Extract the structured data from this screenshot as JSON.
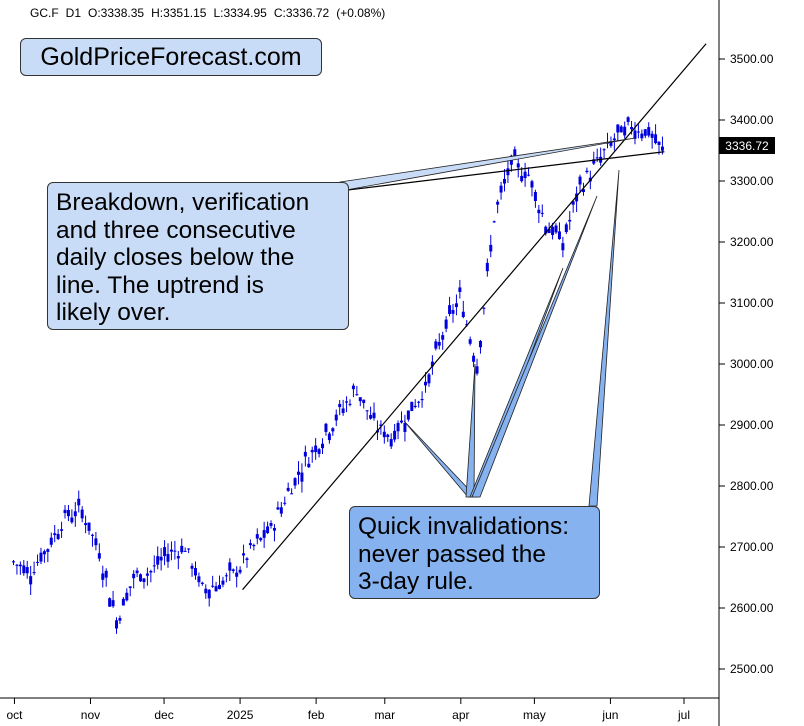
{
  "header": {
    "symbol": "GC.F",
    "timeframe": "D1",
    "open": "O:3338.35",
    "high": "H:3351.15",
    "low": "L:3334.95",
    "close": "C:3336.72",
    "change": "(+0.08%)"
  },
  "brand": "GoldPriceForecast.com",
  "callouts": {
    "breakdown": [
      "Breakdown, verification",
      "and three consecutive",
      "daily closes below the",
      "line. The uptrend is",
      "likely over."
    ],
    "invalidations": [
      "Quick invalidations:",
      "never passed the",
      "3-day rule."
    ]
  },
  "colors": {
    "candle": "#0000dd",
    "line": "#000000",
    "callout_light": "#c9dcf7",
    "callout_dark": "#86b2ef"
  },
  "chart_data": {
    "type": "line",
    "title": "",
    "xlabel": "",
    "ylabel": "",
    "ylim": [
      2475,
      3530
    ],
    "y_ticks": [
      2500,
      2600,
      2700,
      2800,
      2900,
      3000,
      3100,
      3200,
      3300,
      3400,
      3500
    ],
    "y_tick_labels": [
      "2500.00",
      "2600.00",
      "2700.00",
      "2800.00",
      "2900.00",
      "3000.00",
      "3100.00",
      "3200.00",
      "3300.00",
      "3400.00",
      "3500.00"
    ],
    "x_tick_labels": [
      "oct",
      "nov",
      "dec",
      "2025",
      "feb",
      "mar",
      "apr",
      "may",
      "jun",
      "jul"
    ],
    "last_price_label": "3336.72",
    "series": [
      {
        "x": [
          "2024-09-30",
          "2024-10-07",
          "2024-10-14",
          "2024-10-21",
          "2024-10-28",
          "2024-11-04",
          "2024-11-11",
          "2024-11-18",
          "2024-11-25",
          "2024-12-02",
          "2024-12-09",
          "2024-12-16",
          "2024-12-23",
          "2024-12-30",
          "2025-01-06",
          "2025-01-13",
          "2025-01-20",
          "2025-01-27",
          "2025-02-03",
          "2025-02-10",
          "2025-02-17",
          "2025-02-24",
          "2025-03-03",
          "2025-03-10",
          "2025-03-17",
          "2025-03-24",
          "2025-03-31",
          "2025-04-07",
          "2025-04-14",
          "2025-04-21",
          "2025-04-28",
          "2025-05-05",
          "2025-05-12",
          "2025-05-19",
          "2025-05-26",
          "2025-06-02",
          "2025-06-09",
          "2025-06-16",
          "2025-06-23"
        ],
        "values": [
          2675,
          2660,
          2700,
          2750,
          2760,
          2690,
          2580,
          2650,
          2660,
          2690,
          2700,
          2630,
          2640,
          2660,
          2700,
          2730,
          2790,
          2840,
          2880,
          2920,
          2960,
          2900,
          2880,
          2920,
          2960,
          3050,
          3110,
          3000,
          3240,
          3330,
          3310,
          3230,
          3200,
          3290,
          3330,
          3370,
          3390,
          3380,
          3336.72
        ]
      }
    ],
    "trendlines": [
      {
        "from": {
          "x": "2025-01-02",
          "y": 2630
        },
        "to": {
          "x": "2025-07-10",
          "y": 3525
        }
      },
      {
        "from": {
          "x": "2025-01-30",
          "y": 3278
        },
        "to": {
          "x": "2025-06-23",
          "y": 3348
        }
      }
    ]
  }
}
